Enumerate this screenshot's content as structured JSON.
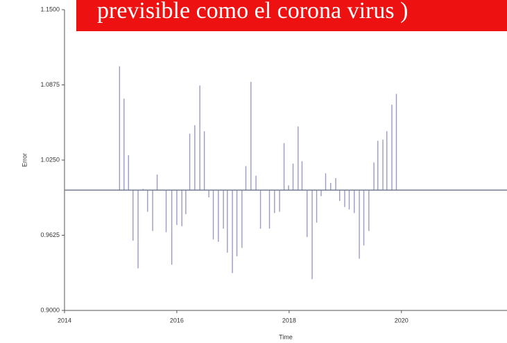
{
  "chart_data": {
    "type": "stem",
    "annotation": "previsible  como el corona virus )",
    "x_label": "Time",
    "y_label": "Error",
    "xlim": [
      2014,
      2021.88
    ],
    "xticks": [
      2014,
      2016,
      2018,
      2020
    ],
    "ylim": [
      0.9,
      1.15
    ],
    "yticks": [
      {
        "value": 0.9,
        "label": "0.9000"
      },
      {
        "value": 0.9625,
        "label": "0.9625"
      },
      {
        "value": 1.025,
        "label": "1.0250"
      },
      {
        "value": 1.0875,
        "label": "1.0875"
      },
      {
        "value": 1.15,
        "label": "1.1500"
      }
    ],
    "baseline": 1,
    "color": "#9a9ac4",
    "baseline_color": "#6f7a8c",
    "x": [
      2014.98,
      2015.06,
      2015.14,
      2015.22,
      2015.31,
      2015.4,
      2015.48,
      2015.57,
      2015.65,
      2015.81,
      2015.91,
      2016.0,
      2016.09,
      2016.16,
      2016.23,
      2016.32,
      2016.41,
      2016.49,
      2016.57,
      2016.65,
      2016.74,
      2016.83,
      2016.9,
      2016.99,
      2017.07,
      2017.16,
      2017.23,
      2017.32,
      2017.41,
      2017.49,
      2017.65,
      2017.74,
      2017.83,
      2017.91,
      2017.99,
      2018.07,
      2018.16,
      2018.23,
      2018.32,
      2018.41,
      2018.49,
      2018.57,
      2018.65,
      2018.74,
      2018.83,
      2018.9,
      2018.99,
      2019.07,
      2019.16,
      2019.25,
      2019.33,
      2019.42,
      2019.51,
      2019.58,
      2019.67,
      2019.74,
      2019.83,
      2019.91
    ],
    "values": [
      1.103,
      1.076,
      1.029,
      0.958,
      0.935,
      1.001,
      0.982,
      0.966,
      1.013,
      0.965,
      0.938,
      0.971,
      0.97,
      0.98,
      1.047,
      1.054,
      1.087,
      1.049,
      0.994,
      0.959,
      0.957,
      0.968,
      0.948,
      0.931,
      0.945,
      0.952,
      1.02,
      1.09,
      1.012,
      0.968,
      0.968,
      0.981,
      0.982,
      1.039,
      1.004,
      1.022,
      1.053,
      1.024,
      0.961,
      0.926,
      0.973,
      0.995,
      1.014,
      1.006,
      1.01,
      0.991,
      0.986,
      0.984,
      0.981,
      0.943,
      0.954,
      0.966,
      1.023,
      1.041,
      1.042,
      1.049,
      1.071,
      1.08
    ]
  }
}
